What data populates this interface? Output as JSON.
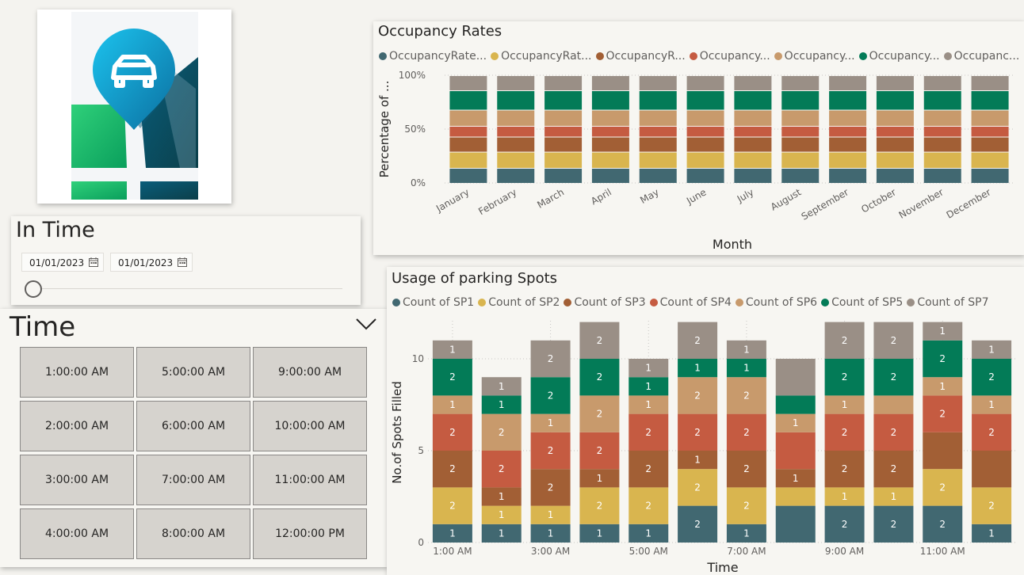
{
  "colors": {
    "sp1": "#416871",
    "sp2": "#d9b54f",
    "sp3": "#a25f35",
    "sp4": "#c55b41",
    "sp6": "#c89a6c",
    "sp5": "#037b57",
    "sp7": "#9a8f86"
  },
  "in_time": {
    "title": "In Time",
    "start_date": "01/01/2023",
    "end_date": "01/01/2023",
    "slider_position": 0
  },
  "time_slicer": {
    "title": "Time",
    "options": [
      "1:00:00 AM",
      "5:00:00 AM",
      "9:00:00 AM",
      "2:00:00 AM",
      "6:00:00 AM",
      "10:00:00 AM",
      "3:00:00 AM",
      "7:00:00 AM",
      "11:00:00 AM",
      "4:00:00 AM",
      "8:00:00 AM",
      "12:00:00 PM"
    ]
  },
  "chart_data": [
    {
      "type": "bar",
      "stacked": "100%",
      "title": "Occupancy Rates",
      "xlabel": "Month",
      "ylabel": "Percentage of ...",
      "yticks": [
        "0%",
        "50%",
        "100%"
      ],
      "legend_position": "top",
      "legend": [
        "OccupancyRate...",
        "OccupancyRat...",
        "OccupancyR...",
        "Occupancy...",
        "Occupancy...",
        "Occupancy...",
        "Occupanc..."
      ],
      "categories": [
        "January",
        "February",
        "March",
        "April",
        "May",
        "June",
        "July",
        "August",
        "September",
        "October",
        "November",
        "December"
      ],
      "series_colors": [
        "sp1",
        "sp2",
        "sp3",
        "sp4",
        "sp6",
        "sp5",
        "sp7"
      ],
      "series": [
        {
          "values": [
            14,
            14,
            14,
            14,
            14,
            14,
            14,
            14,
            14,
            14,
            14,
            14
          ]
        },
        {
          "values": [
            15,
            15,
            15,
            15,
            15,
            15,
            15,
            15,
            15,
            15,
            15,
            15
          ]
        },
        {
          "values": [
            14,
            14,
            14,
            14,
            14,
            14,
            14,
            14,
            14,
            14,
            14,
            14
          ]
        },
        {
          "values": [
            10,
            10,
            10,
            10,
            10,
            10,
            10,
            10,
            10,
            10,
            10,
            10
          ]
        },
        {
          "values": [
            15,
            15,
            15,
            15,
            15,
            15,
            15,
            15,
            15,
            15,
            15,
            15
          ]
        },
        {
          "values": [
            18,
            18,
            18,
            18,
            18,
            18,
            18,
            18,
            18,
            18,
            18,
            18
          ]
        },
        {
          "values": [
            14,
            14,
            14,
            14,
            14,
            14,
            14,
            14,
            14,
            14,
            14,
            14
          ]
        }
      ]
    },
    {
      "type": "bar",
      "stacked": true,
      "title": "Usage of parking Spots",
      "xlabel": "Time",
      "ylabel": "No.of Spots Filled",
      "ylim": [
        0,
        12
      ],
      "yticks": [
        0,
        5,
        10
      ],
      "legend_position": "top",
      "categories": [
        "1:00 AM",
        "2:00 AM",
        "3:00 AM",
        "4:00 AM",
        "5:00 AM",
        "6:00 AM",
        "7:00 AM",
        "8:00 AM",
        "9:00 AM",
        "10:00 AM",
        "11:00 AM",
        "12:00 PM"
      ],
      "xtick_labels": [
        "1:00 AM",
        "",
        "3:00 AM",
        "",
        "5:00 AM",
        "",
        "7:00 AM",
        "",
        "9:00 AM",
        "",
        "11:00 AM",
        ""
      ],
      "series": [
        {
          "name": "Count of SP1",
          "color": "sp1",
          "values": [
            1,
            1,
            1,
            1,
            1,
            2,
            1,
            2,
            2,
            2,
            2,
            1
          ],
          "labels": [
            "1",
            "1",
            "1",
            "1",
            "1",
            "2",
            "1",
            "",
            "2",
            "2",
            "2",
            "1"
          ]
        },
        {
          "name": "Count of SP2",
          "color": "sp2",
          "values": [
            2,
            1,
            1,
            2,
            2,
            2,
            2,
            1,
            1,
            1,
            2,
            2
          ],
          "labels": [
            "2",
            "1",
            "1",
            "2",
            "2",
            "2",
            "2",
            "",
            "1",
            "1",
            "2",
            "2"
          ]
        },
        {
          "name": "Count of SP3",
          "color": "sp3",
          "values": [
            2,
            1,
            2,
            1,
            2,
            1,
            2,
            1,
            2,
            2,
            2,
            2
          ],
          "labels": [
            "2",
            "1",
            "2",
            "1",
            "2",
            "1",
            "2",
            "1",
            "2",
            "2",
            "",
            ""
          ]
        },
        {
          "name": "Count of SP4",
          "color": "sp4",
          "values": [
            2,
            2,
            2,
            2,
            2,
            2,
            2,
            2,
            2,
            2,
            2,
            2
          ],
          "labels": [
            "2",
            "2",
            "2",
            "2",
            "2",
            "2",
            "2",
            "",
            "2",
            "2",
            "2",
            "2"
          ]
        },
        {
          "name": "Count of SP6",
          "color": "sp6",
          "values": [
            1,
            2,
            1,
            2,
            1,
            2,
            2,
            1,
            1,
            1,
            1,
            1
          ],
          "labels": [
            "1",
            "2",
            "1",
            "2",
            "1",
            "2",
            "2",
            "1",
            "1",
            "",
            "1",
            "1"
          ]
        },
        {
          "name": "Count of SP5",
          "color": "sp5",
          "values": [
            2,
            1,
            2,
            2,
            1,
            1,
            1,
            1,
            2,
            2,
            2,
            2
          ],
          "labels": [
            "2",
            "1",
            "2",
            "2",
            "1",
            "1",
            "1",
            "",
            "2",
            "2",
            "2",
            "2"
          ]
        },
        {
          "name": "Count of SP7",
          "color": "sp7",
          "values": [
            1,
            1,
            2,
            2,
            1,
            2,
            1,
            2,
            2,
            2,
            1,
            1
          ],
          "labels": [
            "1",
            "1",
            "2",
            "2",
            "1",
            "2",
            "1",
            "",
            "2",
            "2",
            "1",
            "1"
          ]
        }
      ]
    }
  ]
}
